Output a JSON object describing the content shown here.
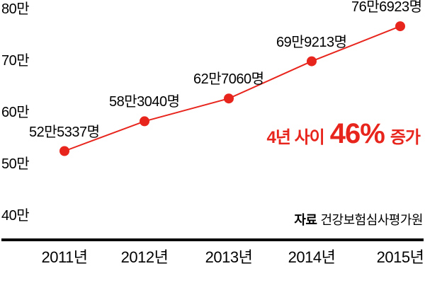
{
  "chart_data": {
    "type": "line",
    "title": "",
    "x": [
      "2011년",
      "2012년",
      "2013년",
      "2014년",
      "2015년"
    ],
    "values": [
      525337,
      583040,
      627060,
      699213,
      766923
    ],
    "point_labels": [
      "52만5337명",
      "58만3040명",
      "62만7060명",
      "69만9213명",
      "76만6923명"
    ],
    "ytick_labels": [
      "80만",
      "70만",
      "60만",
      "50만",
      "40만"
    ],
    "ytick_values": [
      800000,
      700000,
      600000,
      500000,
      400000
    ],
    "ylim": [
      400000,
      800000
    ],
    "xlabel": "",
    "ylabel": "",
    "grid": false,
    "legend": "none",
    "marker": "circle",
    "line_color": "#e8251d",
    "axis_color": "#0a0a0a"
  },
  "annotation": {
    "prefix": "4년 사이",
    "highlight": "46%",
    "suffix": "증가",
    "color": "#e8251d"
  },
  "source": {
    "prefix": "자료",
    "text": "건강보험심사평가원"
  }
}
